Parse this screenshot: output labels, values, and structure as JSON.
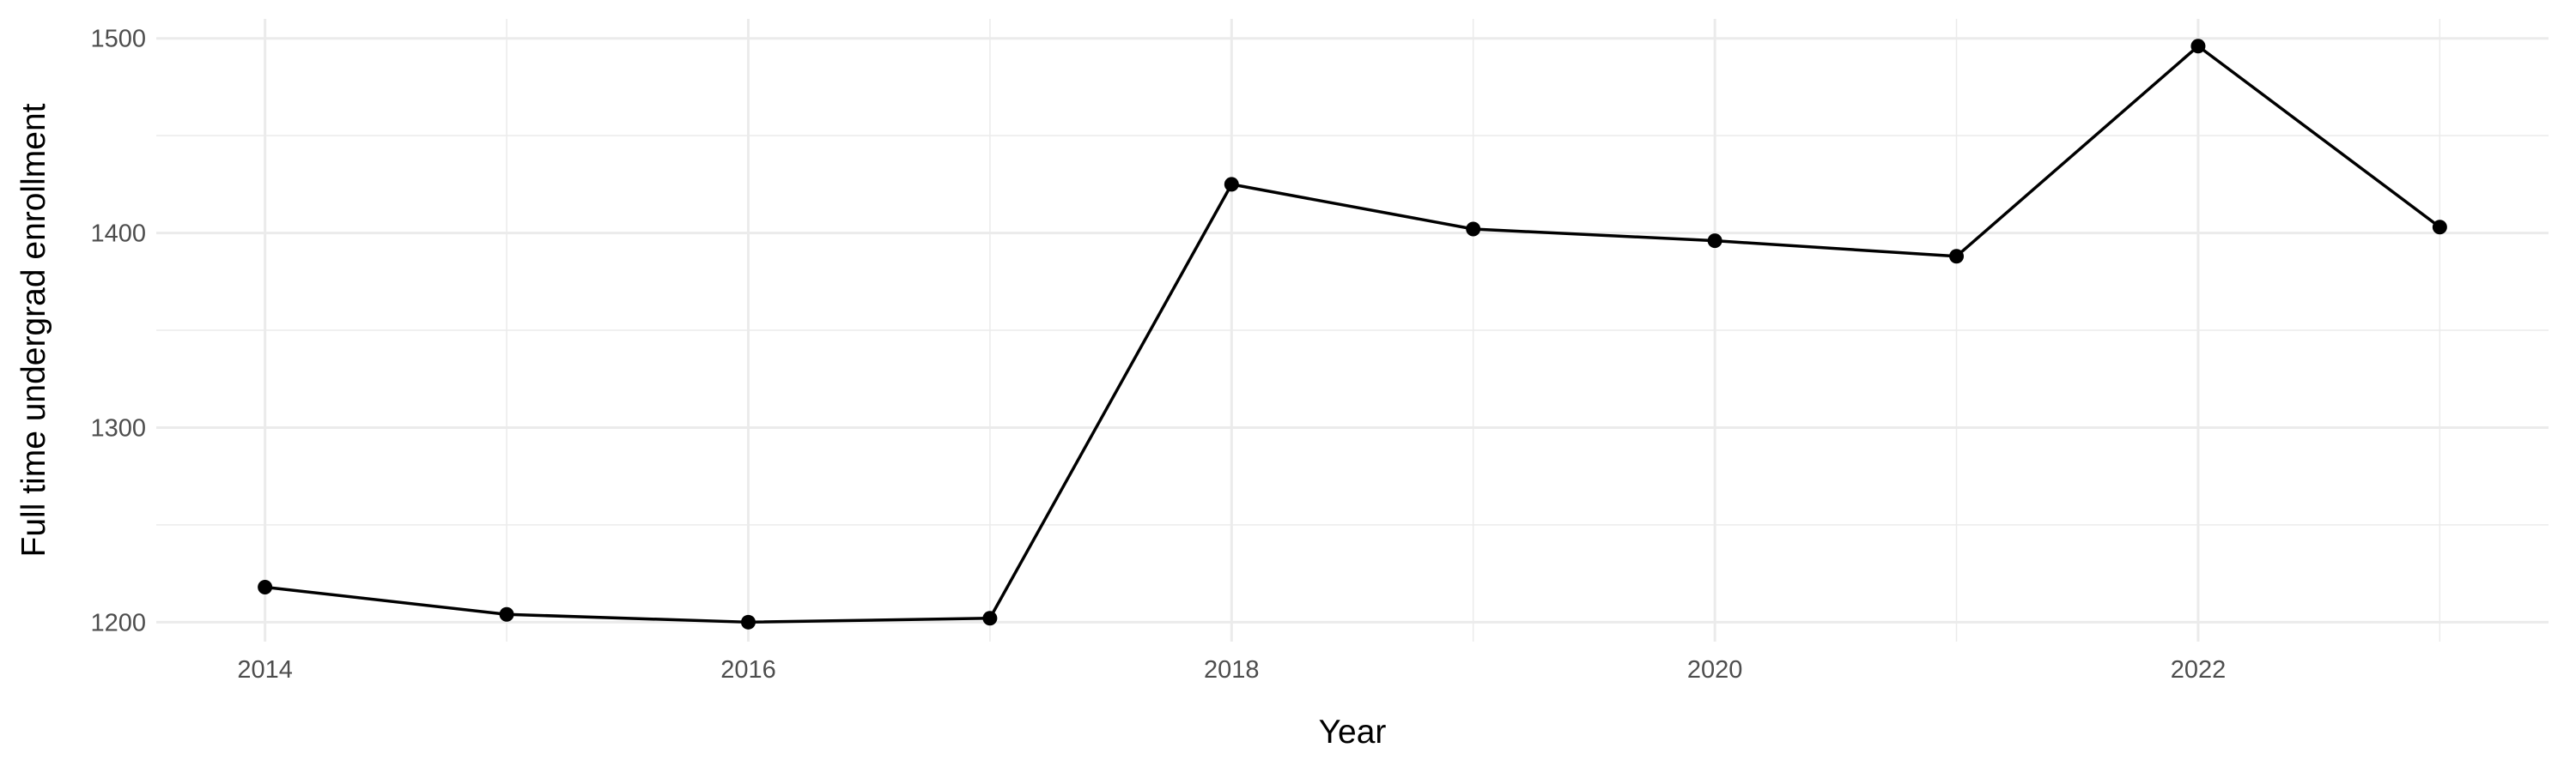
{
  "chart_data": {
    "type": "line",
    "title": "",
    "xlabel": "Year",
    "ylabel": "Full time undergrad enrollment",
    "x": [
      2014,
      2015,
      2016,
      2017,
      2018,
      2019,
      2020,
      2021,
      2022,
      2023
    ],
    "series": [
      {
        "values": [
          1218,
          1204,
          1200,
          1202,
          1425,
          1402,
          1396,
          1388,
          1496,
          1403
        ]
      }
    ],
    "xlim": [
      2013.55,
      2023.45
    ],
    "ylim": [
      1190,
      1510
    ],
    "x_ticks": [
      2014,
      2016,
      2018,
      2020,
      2022
    ],
    "y_ticks": [
      1200,
      1300,
      1400,
      1500
    ],
    "grid": true,
    "line_color": "#000000",
    "grid_color": "#ebebeb",
    "legend": "none"
  }
}
